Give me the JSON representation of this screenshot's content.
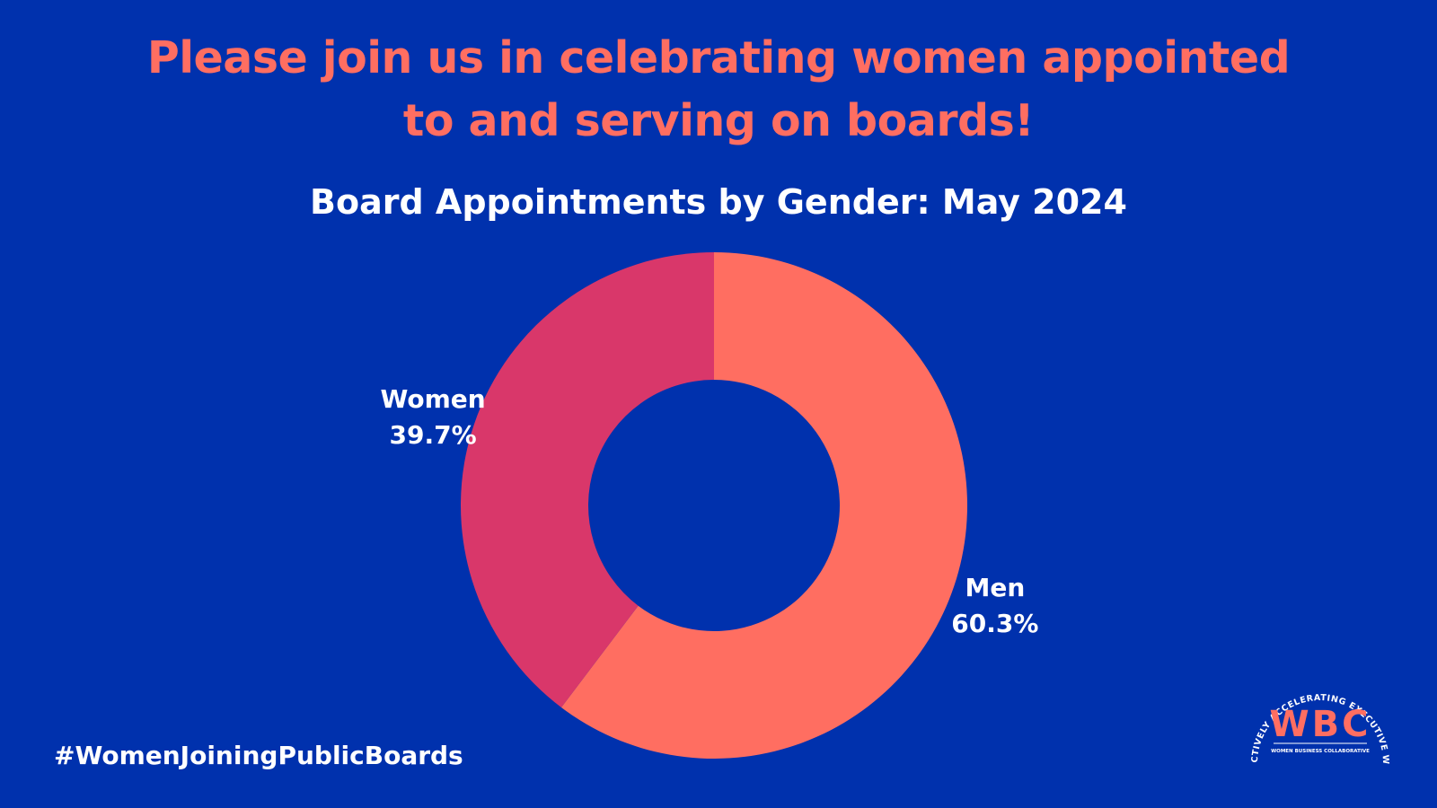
{
  "headline": {
    "line1": "Please join us in celebrating women appointed",
    "line2": "to and serving on boards!"
  },
  "chart_data": {
    "type": "pie",
    "title": "Board Appointments by Gender: May 2024",
    "donut": true,
    "start": "12 o'clock, clockwise",
    "slices": [
      {
        "label": "Men",
        "value": 60.3,
        "display": "60.3%",
        "color": "#ff6e61"
      },
      {
        "label": "Women",
        "value": 39.7,
        "display": "39.7%",
        "color": "#d9376a"
      }
    ]
  },
  "footer": {
    "hashtag": "#WomenJoiningPublicBoards"
  },
  "logo": {
    "ring_text": "COLLECTIVELY ACCELERATING EXECUTIVE WOMEN",
    "letters": "WBC",
    "subtext": "WOMEN BUSINESS COLLABORATIVE",
    "accent_color": "#ff6e61"
  },
  "colors": {
    "background": "#0031ad",
    "headline": "#ff6e61",
    "text": "#ffffff"
  }
}
